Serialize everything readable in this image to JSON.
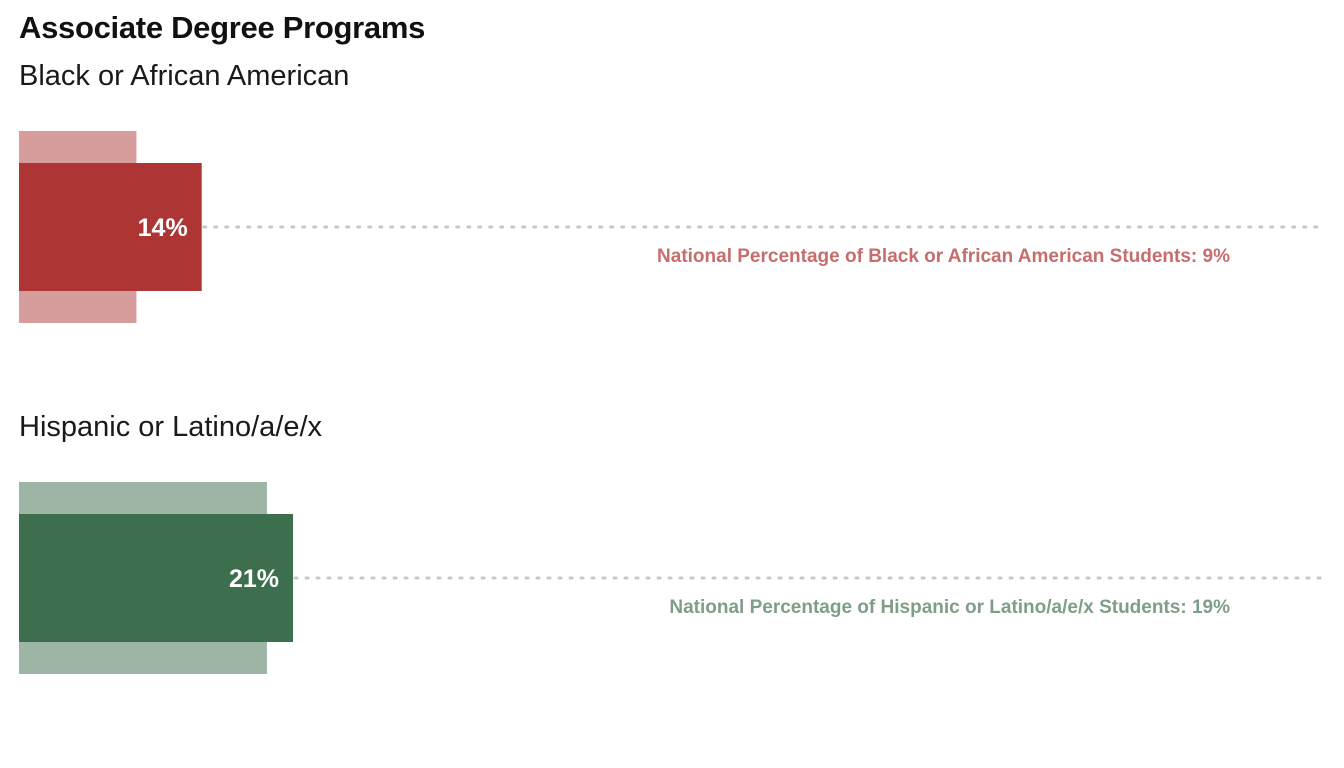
{
  "chart_data": {
    "type": "bar",
    "title": "Associate Degree Programs",
    "series": [
      {
        "name": "Black or African American",
        "value": 14,
        "value_label": "14%",
        "national_value": 9,
        "national_label": "National Percentage of Black or African American Students: 9%",
        "color": "#ad3634",
        "national_color": "#d69d9c",
        "label_color": "#c56e6d"
      },
      {
        "name": "Hispanic or Latino/a/e/x",
        "value": 21,
        "value_label": "21%",
        "national_value": 19,
        "national_label": "National Percentage of Hispanic or Latino/a/e/x Students: 19%",
        "color": "#3d6e4e",
        "national_color": "#9db5a5",
        "label_color": "#7f9e89"
      }
    ],
    "grid": false,
    "legend": "none"
  }
}
